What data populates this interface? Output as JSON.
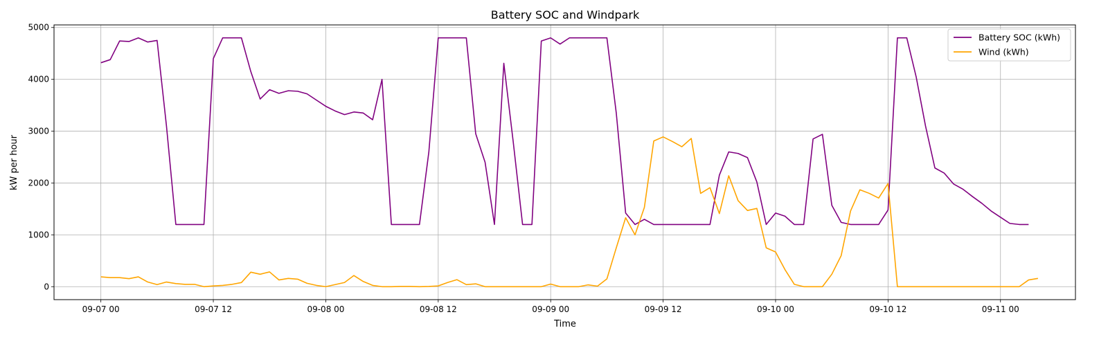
{
  "chart_data": {
    "type": "line",
    "title": "Battery SOC and Windpark",
    "xlabel": "Time",
    "ylabel": "kW per hour",
    "x_start": "2024-09-07 00:00",
    "x_step_hours": 1,
    "x_ticks": [
      {
        "label": "09-07 00",
        "hour": 0
      },
      {
        "label": "09-07 12",
        "hour": 12
      },
      {
        "label": "09-08 00",
        "hour": 24
      },
      {
        "label": "09-08 12",
        "hour": 36
      },
      {
        "label": "09-09 00",
        "hour": 48
      },
      {
        "label": "09-09 12",
        "hour": 60
      },
      {
        "label": "09-10 00",
        "hour": 72
      },
      {
        "label": "09-10 12",
        "hour": 84
      },
      {
        "label": "09-11 00",
        "hour": 96
      }
    ],
    "xlim_hours": [
      -5,
      104
    ],
    "ylim": [
      -250,
      5050
    ],
    "y_ticks": [
      0,
      1000,
      2000,
      3000,
      4000,
      5000
    ],
    "grid": true,
    "legend_position": "top-right",
    "series": [
      {
        "name": "Battery SOC (kWh)",
        "color": "#800080",
        "values": [
          4320,
          4380,
          4740,
          4730,
          4800,
          4720,
          4750,
          3100,
          1200,
          1200,
          1200,
          1200,
          4400,
          4800,
          4800,
          4800,
          4150,
          3620,
          3800,
          3730,
          3780,
          3770,
          3720,
          3600,
          3480,
          3390,
          3320,
          3370,
          3350,
          3220,
          4000,
          1200,
          1200,
          1200,
          1200,
          2600,
          4800,
          4800,
          4800,
          4800,
          2950,
          2400,
          1200,
          4310,
          2800,
          1200,
          1200,
          4740,
          4800,
          4680,
          4800,
          4800,
          4800,
          4800,
          4800,
          3350,
          1420,
          1200,
          1300,
          1200,
          1200,
          1200,
          1200,
          1200,
          1200,
          1200,
          2150,
          2600,
          2570,
          2490,
          2020,
          1200,
          1420,
          1360,
          1200,
          1200,
          2850,
          2940,
          1570,
          1240,
          1200,
          1200,
          1200,
          1200,
          1480,
          4800,
          4800,
          4050,
          3100,
          2290,
          2190,
          1980,
          1880,
          1740,
          1610,
          1460,
          1340,
          1220,
          1200,
          1200
        ]
      },
      {
        "name": "Wind (kWh)",
        "color": "#FFA500",
        "values": [
          190,
          175,
          175,
          155,
          190,
          90,
          40,
          90,
          60,
          45,
          45,
          0,
          15,
          25,
          45,
          80,
          280,
          240,
          285,
          130,
          160,
          145,
          65,
          25,
          0,
          40,
          80,
          215,
          100,
          25,
          0,
          0,
          5,
          5,
          0,
          5,
          15,
          80,
          135,
          40,
          55,
          0,
          0,
          0,
          0,
          0,
          0,
          0,
          50,
          0,
          0,
          0,
          35,
          10,
          150,
          750,
          1330,
          1000,
          1530,
          2810,
          2890,
          2800,
          2700,
          2860,
          1800,
          1910,
          1410,
          2140,
          1660,
          1470,
          1510,
          750,
          670,
          330,
          45,
          0,
          0,
          0,
          240,
          600,
          1460,
          1870,
          1800,
          1710,
          1990,
          0,
          0,
          0,
          0,
          0,
          0,
          0,
          0,
          0,
          0,
          0,
          0,
          0,
          0,
          130,
          160
        ]
      }
    ]
  }
}
